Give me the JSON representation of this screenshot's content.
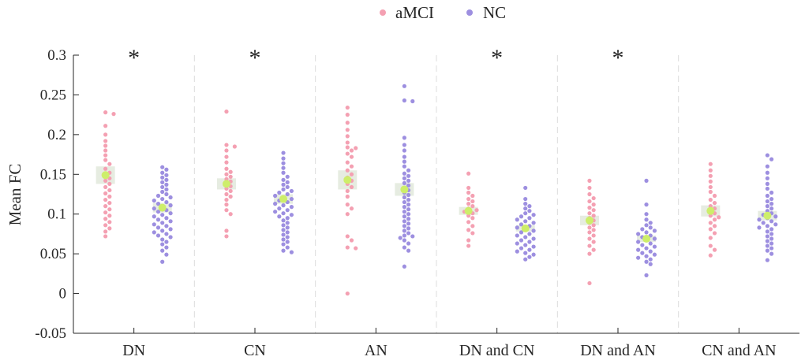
{
  "chart_data": {
    "type": "scatter",
    "subtype": "swarm-with-mean-and-error-box",
    "title": "",
    "xlabel": "",
    "ylabel": "Mean FC",
    "ylim": [
      -0.05,
      0.3
    ],
    "yticks": [
      -0.05,
      0,
      0.05,
      0.1,
      0.15,
      0.2,
      0.25,
      0.3
    ],
    "ytick_labels": [
      "-0.05",
      "0",
      "0.05",
      "0.1",
      "0.15",
      "0.2",
      "0.25",
      "0.3"
    ],
    "categories": [
      "DN",
      "CN",
      "AN",
      "DN and CN",
      "DN and AN",
      "CN and AN"
    ],
    "significance": [
      "*",
      "*",
      "",
      "*",
      "*",
      ""
    ],
    "legend": {
      "placement": "top-center",
      "entries": [
        {
          "name": "aMCI",
          "color": "#f4a0b2"
        },
        {
          "name": "NC",
          "color": "#9d8fe0"
        }
      ]
    },
    "mean_marker_color": "#cdee6a",
    "error_box_color": "#e6ece1",
    "series": [
      {
        "name": "aMCI",
        "color": "#f4a0b2",
        "means": [
          0.149,
          0.138,
          0.143,
          0.104,
          0.092,
          0.104
        ],
        "sem": [
          0.011,
          0.007,
          0.012,
          0.005,
          0.006,
          0.007
        ],
        "points": [
          [
            0.228,
            0.226,
            0.211,
            0.2,
            0.192,
            0.186,
            0.18,
            0.174,
            0.168,
            0.163,
            0.157,
            0.152,
            0.148,
            0.145,
            0.142,
            0.138,
            0.134,
            0.13,
            0.126,
            0.122,
            0.118,
            0.114,
            0.11,
            0.106,
            0.102,
            0.098,
            0.094,
            0.09,
            0.086,
            0.082,
            0.078,
            0.072
          ],
          [
            0.229,
            0.187,
            0.185,
            0.18,
            0.172,
            0.165,
            0.157,
            0.153,
            0.15,
            0.147,
            0.144,
            0.141,
            0.138,
            0.135,
            0.132,
            0.129,
            0.125,
            0.122,
            0.118,
            0.112,
            0.105,
            0.1,
            0.079,
            0.072
          ],
          [
            0.234,
            0.225,
            0.215,
            0.206,
            0.198,
            0.19,
            0.184,
            0.183,
            0.18,
            0.176,
            0.172,
            0.165,
            0.16,
            0.155,
            0.15,
            0.146,
            0.142,
            0.138,
            0.134,
            0.129,
            0.122,
            0.112,
            0.107,
            0.1,
            0.072,
            0.067,
            0.058,
            0.057,
            0.0
          ],
          [
            0.151,
            0.133,
            0.127,
            0.123,
            0.119,
            0.116,
            0.113,
            0.11,
            0.107,
            0.105,
            0.103,
            0.101,
            0.098,
            0.095,
            0.09,
            0.085,
            0.08,
            0.076,
            0.067,
            0.06
          ],
          [
            0.142,
            0.133,
            0.125,
            0.12,
            0.116,
            0.112,
            0.108,
            0.105,
            0.101,
            0.098,
            0.095,
            0.092,
            0.089,
            0.086,
            0.083,
            0.08,
            0.077,
            0.073,
            0.069,
            0.065,
            0.06,
            0.055,
            0.05,
            0.013
          ],
          [
            0.163,
            0.155,
            0.148,
            0.141,
            0.134,
            0.128,
            0.123,
            0.118,
            0.114,
            0.11,
            0.107,
            0.104,
            0.101,
            0.098,
            0.096,
            0.093,
            0.089,
            0.085,
            0.081,
            0.076,
            0.07,
            0.06,
            0.055,
            0.048
          ]
        ]
      },
      {
        "name": "NC",
        "color": "#9d8fe0",
        "means": [
          0.108,
          0.119,
          0.131,
          0.082,
          0.069,
          0.098
        ],
        "sem": [
          0.006,
          0.006,
          0.008,
          0.004,
          0.004,
          0.006
        ],
        "points": [
          [
            0.159,
            0.156,
            0.152,
            0.149,
            0.146,
            0.143,
            0.14,
            0.137,
            0.134,
            0.131,
            0.128,
            0.125,
            0.123,
            0.121,
            0.119,
            0.117,
            0.115,
            0.113,
            0.111,
            0.109,
            0.107,
            0.105,
            0.103,
            0.101,
            0.099,
            0.097,
            0.095,
            0.093,
            0.091,
            0.089,
            0.087,
            0.085,
            0.083,
            0.081,
            0.079,
            0.077,
            0.075,
            0.073,
            0.071,
            0.068,
            0.065,
            0.062,
            0.058,
            0.054,
            0.049,
            0.04
          ],
          [
            0.177,
            0.17,
            0.164,
            0.158,
            0.152,
            0.147,
            0.143,
            0.14,
            0.137,
            0.134,
            0.131,
            0.129,
            0.127,
            0.125,
            0.123,
            0.121,
            0.119,
            0.117,
            0.115,
            0.113,
            0.111,
            0.109,
            0.107,
            0.105,
            0.103,
            0.101,
            0.099,
            0.097,
            0.095,
            0.092,
            0.089,
            0.086,
            0.083,
            0.08,
            0.077,
            0.074,
            0.071,
            0.068,
            0.065,
            0.062,
            0.058,
            0.054,
            0.052
          ],
          [
            0.261,
            0.243,
            0.242,
            0.196,
            0.187,
            0.18,
            0.172,
            0.166,
            0.16,
            0.155,
            0.151,
            0.148,
            0.145,
            0.142,
            0.139,
            0.136,
            0.133,
            0.13,
            0.127,
            0.124,
            0.121,
            0.118,
            0.115,
            0.112,
            0.109,
            0.106,
            0.103,
            0.1,
            0.097,
            0.094,
            0.091,
            0.088,
            0.085,
            0.082,
            0.079,
            0.076,
            0.073,
            0.072,
            0.07,
            0.067,
            0.063,
            0.058,
            0.054,
            0.034
          ],
          [
            0.133,
            0.119,
            0.113,
            0.11,
            0.107,
            0.104,
            0.101,
            0.099,
            0.097,
            0.095,
            0.093,
            0.091,
            0.089,
            0.087,
            0.085,
            0.083,
            0.081,
            0.079,
            0.077,
            0.075,
            0.073,
            0.071,
            0.069,
            0.067,
            0.065,
            0.063,
            0.061,
            0.059,
            0.057,
            0.055,
            0.053,
            0.051,
            0.049,
            0.046,
            0.043
          ],
          [
            0.142,
            0.112,
            0.1,
            0.093,
            0.089,
            0.086,
            0.083,
            0.081,
            0.079,
            0.077,
            0.075,
            0.073,
            0.071,
            0.069,
            0.067,
            0.065,
            0.063,
            0.061,
            0.059,
            0.057,
            0.055,
            0.053,
            0.051,
            0.049,
            0.047,
            0.045,
            0.043,
            0.04,
            0.037,
            0.023
          ],
          [
            0.174,
            0.169,
            0.16,
            0.152,
            0.145,
            0.138,
            0.132,
            0.127,
            0.123,
            0.119,
            0.116,
            0.113,
            0.11,
            0.107,
            0.104,
            0.101,
            0.099,
            0.097,
            0.095,
            0.093,
            0.091,
            0.089,
            0.087,
            0.085,
            0.083,
            0.081,
            0.078,
            0.075,
            0.072,
            0.069,
            0.066,
            0.063,
            0.06,
            0.057,
            0.054,
            0.05,
            0.042
          ]
        ]
      }
    ]
  }
}
